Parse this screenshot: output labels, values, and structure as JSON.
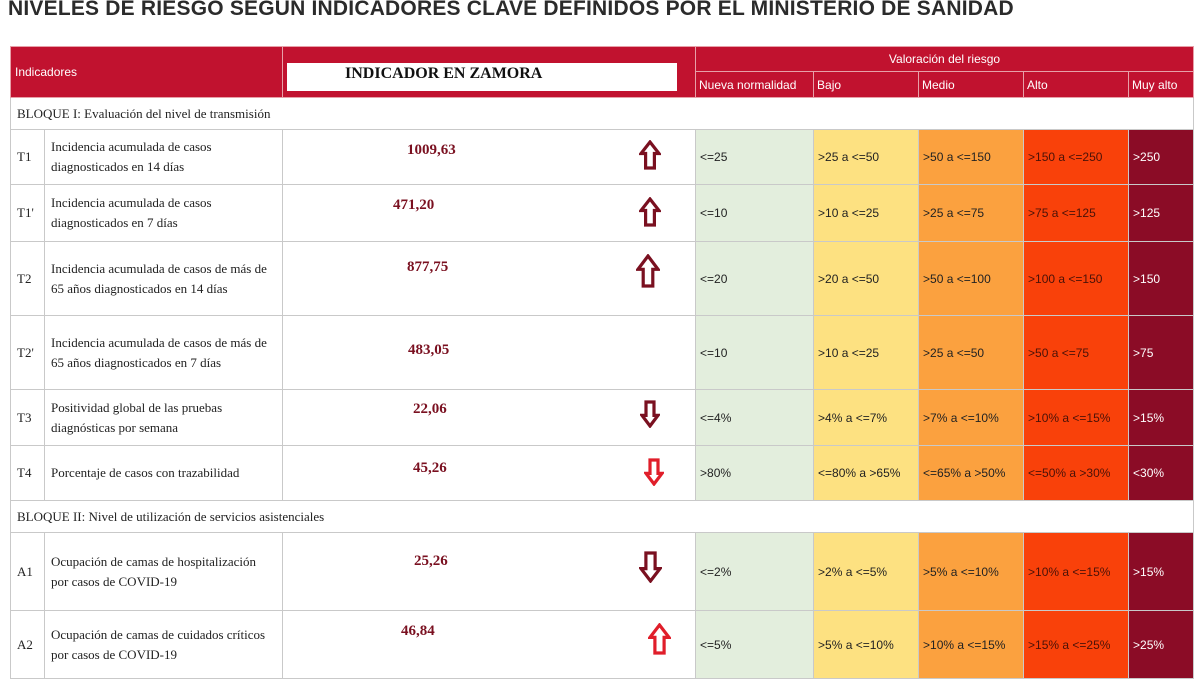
{
  "title": "NIVELES DE RIESGO SEGÚN INDICADORES CLAVE DEFINIDOS POR EL MINISTERIO DE SANIDAD",
  "header": {
    "indicadores": "Indicadores",
    "zamora": "INDICADOR EN ZAMORA",
    "valoracion": "Valoración del riesgo",
    "levels": [
      "Nueva normalidad",
      "Bajo",
      "Medio",
      "Alto",
      "Muy alto"
    ]
  },
  "colors": {
    "header": "#c1122f",
    "nueva_normalidad": "#e3eedd",
    "bajo": "#fde181",
    "medio": "#fba13f",
    "alto": "#f9410a",
    "muy_alto": "#8b0c26"
  },
  "bloque1": {
    "title": "BLOQUE I: Evaluación del nivel de transmisión",
    "rows": [
      {
        "code": "T1",
        "name": "Incidencia acumulada de casos diagnosticados en 14 días",
        "value": "1009,63",
        "trend": "up",
        "arrow": "arrow-up-icon",
        "levels": [
          "<=25",
          ">25 a <=50",
          ">50 a <=150",
          ">150 a <=250",
          ">250"
        ]
      },
      {
        "code": "T1'",
        "name": "Incidencia acumulada de casos diagnosticados en 7 días",
        "value": "471,20",
        "trend": "up",
        "arrow": "arrow-up-icon",
        "levels": [
          "<=10",
          ">10 a <=25",
          ">25 a <=75",
          ">75 a <=125",
          ">125"
        ]
      },
      {
        "code": "T2",
        "name": "Incidencia acumulada de casos de más de 65 años diagnosticados en 14 días",
        "value": "877,75",
        "trend": "up",
        "arrow": "arrow-up-icon",
        "levels": [
          "<=20",
          ">20 a <=50",
          ">50 a <=100",
          ">100 a <=150",
          ">150"
        ]
      },
      {
        "code": "T2'",
        "name": "Incidencia acumulada de casos de más de 65 años diagnosticados en 7 días",
        "value": "483,05",
        "trend": "none",
        "arrow": "",
        "levels": [
          "<=10",
          ">10 a <=25",
          ">25 a <=50",
          ">50 a <=75",
          ">75"
        ]
      },
      {
        "code": "T3",
        "name": "Positividad global de las pruebas diagnósticas por semana",
        "value": "22,06",
        "trend": "down",
        "arrow": "arrow-down-icon",
        "levels": [
          "<=4%",
          ">4% a <=7%",
          ">7% a <=10%",
          ">10% a <=15%",
          ">15%"
        ]
      },
      {
        "code": "T4",
        "name": "Porcentaje de casos con trazabilidad",
        "value": "45,26",
        "trend": "down",
        "arrow": "arrow-down-icon",
        "levels": [
          ">80%",
          "<=80% a >65%",
          "<=65% a >50%",
          "<=50% a >30%",
          "<30%"
        ]
      }
    ]
  },
  "bloque2": {
    "title": "BLOQUE II: Nivel de utilización de servicios asistenciales",
    "rows": [
      {
        "code": "A1",
        "name": "Ocupación de camas de hospitalización por casos de COVID-19",
        "value": "25,26",
        "trend": "down",
        "arrow": "arrow-down-icon",
        "levels": [
          "<=2%",
          ">2% a <=5%",
          ">5% a <=10%",
          ">10% a <=15%",
          ">15%"
        ]
      },
      {
        "code": "A2",
        "name": "Ocupación de camas de cuidados críticos por casos de COVID-19",
        "value": "46,84",
        "trend": "up",
        "arrow": "arrow-up-icon",
        "levels": [
          "<=5%",
          ">5% a <=10%",
          ">10% a <=15%",
          ">15% a <=25%",
          ">25%"
        ]
      }
    ]
  }
}
